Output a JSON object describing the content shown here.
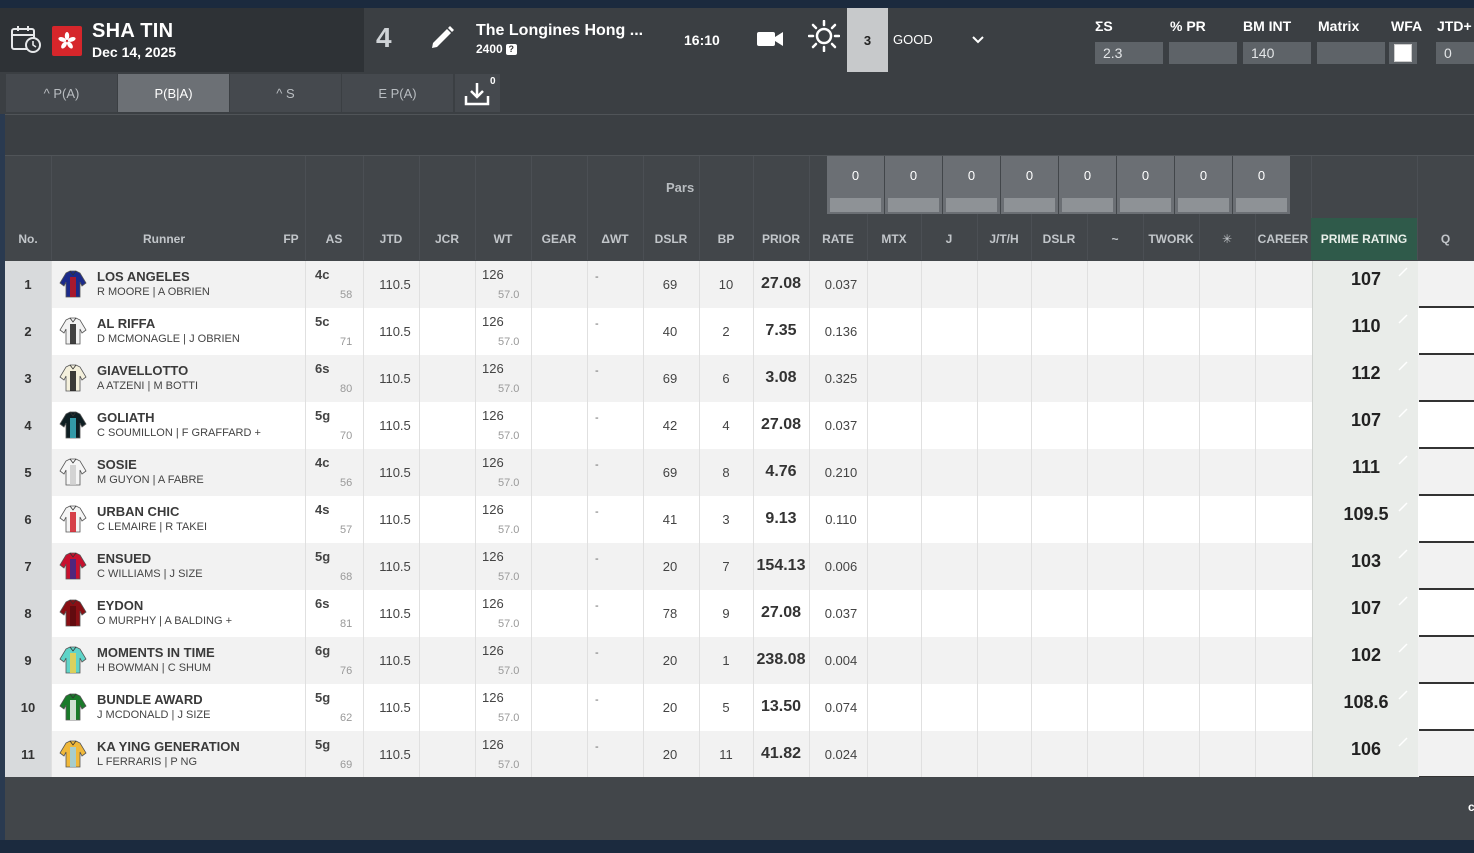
{
  "header": {
    "venue": "SHA TIN",
    "date": "Dec 14, 2025",
    "race_number": "4",
    "race_name": "The Longines Hong ...",
    "distance": "2400",
    "help": "?",
    "time": "16:10",
    "going_code": "3",
    "going": "GOOD",
    "stats": {
      "sum_s_label": "ΣS",
      "sum_s_value": "2.3",
      "pr_label": "% PR",
      "pr_value": "",
      "bm_int_label": "BM INT",
      "bm_int_value": "140",
      "matrix_label": "Matrix",
      "matrix_value": "",
      "wfa_label": "WFA",
      "jtd_label": "JTD+",
      "jtd_value": "0"
    }
  },
  "tabs": [
    "^ P(A)",
    "P(B|A)",
    "^ S",
    "E P(A)"
  ],
  "download_count": "0",
  "pars": {
    "label": "Pars",
    "values": [
      "0",
      "0",
      "0",
      "0",
      "0",
      "0",
      "0",
      "0"
    ]
  },
  "columns": {
    "no": "No.",
    "runner": "Runner",
    "fp": "FP",
    "as": "AS",
    "jtd": "JTD",
    "jcr": "JCR",
    "wt": "WT",
    "gear": "GEAR",
    "dwt": "ΔWT",
    "dslr": "DSLR",
    "bp": "BP",
    "prior": "PRIOR",
    "rate": "RATE",
    "mtx": "MTX",
    "j": "J",
    "jth": "J/T/H",
    "dslr2": "DSLR",
    "tilde": "~",
    "twork": "TWORK",
    "star": "✳",
    "career": "CAREER",
    "prime": "PRIME RATING",
    "q": "Q"
  },
  "runners": [
    {
      "no": "1",
      "name": "LOS ANGELES",
      "conn": "R MOORE | A OBRIEN",
      "as": "4c",
      "as_sub": "58",
      "jtd": "110.5",
      "wt": "126",
      "wt_sub": "57.0",
      "dwt": "-",
      "dslr": "69",
      "bp": "10",
      "prior": "27.08",
      "rate": "0.037",
      "prime": "107",
      "silk": [
        "#1b2a8a",
        "#c0161d"
      ]
    },
    {
      "no": "2",
      "name": "AL RIFFA",
      "conn": "D MCMONAGLE | J OBRIEN",
      "as": "5c",
      "as_sub": "71",
      "jtd": "110.5",
      "wt": "126",
      "wt_sub": "57.0",
      "dwt": "-",
      "dslr": "40",
      "bp": "2",
      "prior": "7.35",
      "rate": "0.136",
      "prime": "110",
      "silk": [
        "#f2f2f2",
        "#222222"
      ]
    },
    {
      "no": "3",
      "name": "GIAVELLOTTO",
      "conn": "A ATZENI | M BOTTI",
      "as": "6s",
      "as_sub": "80",
      "jtd": "110.5",
      "wt": "126",
      "wt_sub": "57.0",
      "dwt": "-",
      "dslr": "69",
      "bp": "6",
      "prior": "3.08",
      "rate": "0.325",
      "prime": "112",
      "silk": [
        "#f4f0dc",
        "#1a1a1a"
      ]
    },
    {
      "no": "4",
      "name": "GOLIATH",
      "conn": "C SOUMILLON | F GRAFFARD +",
      "as": "5g",
      "as_sub": "70",
      "jtd": "110.5",
      "wt": "126",
      "wt_sub": "57.0",
      "dwt": "-",
      "dslr": "42",
      "bp": "4",
      "prior": "27.08",
      "rate": "0.037",
      "prime": "107",
      "silk": [
        "#0e1e22",
        "#3ab0c0"
      ]
    },
    {
      "no": "5",
      "name": "SOSIE",
      "conn": "M GUYON | A FABRE",
      "as": "4c",
      "as_sub": "56",
      "jtd": "110.5",
      "wt": "126",
      "wt_sub": "57.0",
      "dwt": "-",
      "dslr": "69",
      "bp": "8",
      "prior": "4.76",
      "rate": "0.210",
      "prime": "111",
      "silk": [
        "#f5f5f5",
        "#cccccc"
      ]
    },
    {
      "no": "6",
      "name": "URBAN CHIC",
      "conn": "C LEMAIRE | R TAKEI",
      "as": "4s",
      "as_sub": "57",
      "jtd": "110.5",
      "wt": "126",
      "wt_sub": "57.0",
      "dwt": "-",
      "dslr": "41",
      "bp": "3",
      "prior": "9.13",
      "rate": "0.110",
      "prime": "109.5",
      "silk": [
        "#f5f5f5",
        "#d0202a"
      ]
    },
    {
      "no": "7",
      "name": "ENSUED",
      "conn": "C WILLIAMS | J SIZE",
      "as": "5g",
      "as_sub": "68",
      "jtd": "110.5",
      "wt": "126",
      "wt_sub": "57.0",
      "dwt": "-",
      "dslr": "20",
      "bp": "7",
      "prior": "154.13",
      "rate": "0.006",
      "prime": "103",
      "silk": [
        "#c8102e",
        "#3a2a8a"
      ]
    },
    {
      "no": "8",
      "name": "EYDON",
      "conn": "O MURPHY | A BALDING +",
      "as": "6s",
      "as_sub": "81",
      "jtd": "110.5",
      "wt": "126",
      "wt_sub": "57.0",
      "dwt": "-",
      "dslr": "78",
      "bp": "9",
      "prior": "27.08",
      "rate": "0.037",
      "prime": "107",
      "silk": [
        "#8a0f14",
        "#5a0a0e"
      ]
    },
    {
      "no": "9",
      "name": "MOMENTS IN TIME",
      "conn": "H BOWMAN | C SHUM",
      "as": "6g",
      "as_sub": "76",
      "jtd": "110.5",
      "wt": "126",
      "wt_sub": "57.0",
      "dwt": "-",
      "dslr": "20",
      "bp": "1",
      "prior": "238.08",
      "rate": "0.004",
      "prime": "102",
      "silk": [
        "#5fd4c8",
        "#f0d04a"
      ]
    },
    {
      "no": "10",
      "name": "BUNDLE AWARD",
      "conn": "J MCDONALD | J SIZE",
      "as": "5g",
      "as_sub": "62",
      "jtd": "110.5",
      "wt": "126",
      "wt_sub": "57.0",
      "dwt": "-",
      "dslr": "20",
      "bp": "5",
      "prior": "13.50",
      "rate": "0.074",
      "prime": "108.6",
      "silk": [
        "#1a7a2a",
        "#f2f2f2"
      ]
    },
    {
      "no": "11",
      "name": "KA YING GENERATION",
      "conn": "L FERRARIS | P NG",
      "as": "5g",
      "as_sub": "69",
      "jtd": "110.5",
      "wt": "126",
      "wt_sub": "57.0",
      "dwt": "-",
      "dslr": "20",
      "bp": "11",
      "prior": "41.82",
      "rate": "0.024",
      "prime": "106",
      "silk": [
        "#f0b83a",
        "#9ad0e8"
      ]
    }
  ],
  "side_mark": "c"
}
